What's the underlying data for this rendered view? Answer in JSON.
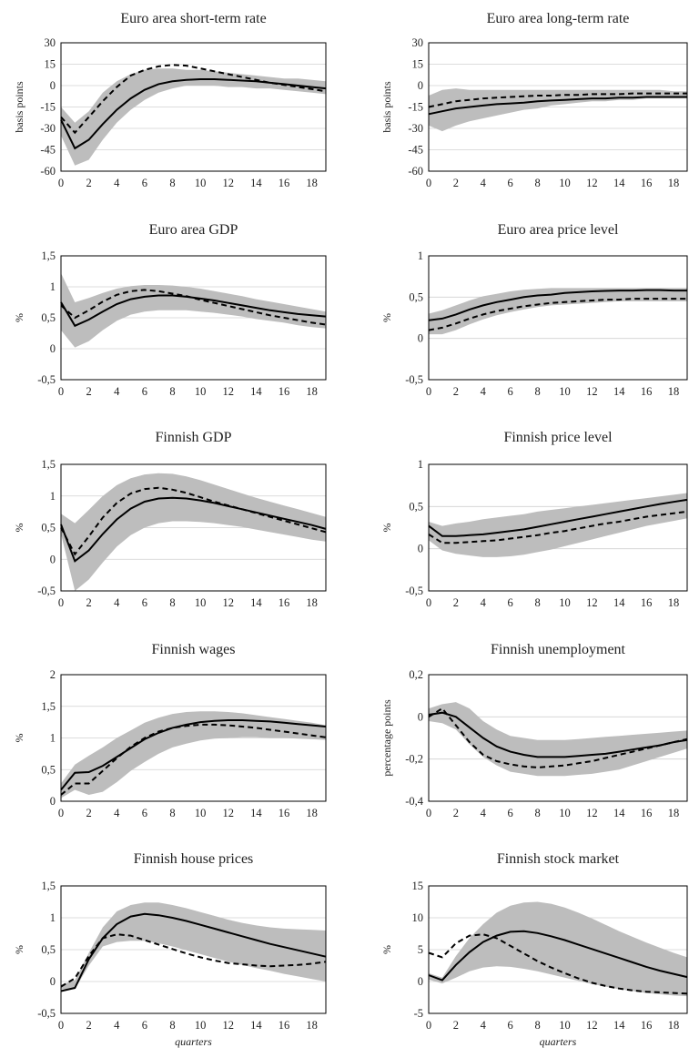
{
  "chart_data": [
    {
      "type": "line",
      "title": "Euro area short-term rate",
      "ylabel": "basis points",
      "xlabel": "",
      "ylim": [
        -60,
        30
      ],
      "yticks": [
        "30",
        "15",
        "0",
        "-15",
        "-30",
        "-45",
        "-60"
      ],
      "ytick_values": [
        30,
        15,
        0,
        -15,
        -30,
        -45,
        -60
      ],
      "xticks": [
        "0",
        "2",
        "4",
        "6",
        "8",
        "10",
        "12",
        "14",
        "16",
        "18"
      ],
      "x": [
        0,
        1,
        2,
        3,
        4,
        5,
        6,
        7,
        8,
        9,
        10,
        11,
        12,
        13,
        14,
        15,
        16,
        17,
        18,
        19
      ],
      "band_lower": [
        -35,
        -56,
        -52,
        -38,
        -26,
        -17,
        -10,
        -5,
        -2,
        0,
        0,
        0,
        -1,
        -1,
        -2,
        -2,
        -3,
        -4,
        -5,
        -6
      ],
      "band_upper": [
        -15,
        -26,
        -18,
        -5,
        3,
        8,
        11,
        12,
        12,
        11,
        11,
        10,
        9,
        8,
        7,
        6,
        5,
        5,
        4,
        3
      ],
      "solid": [
        -24,
        -44,
        -38,
        -27,
        -17,
        -9,
        -3,
        1,
        3,
        4,
        4.5,
        4.5,
        4,
        3.5,
        3,
        2,
        1,
        0,
        -1,
        -2
      ],
      "dashed": [
        -22,
        -33,
        -22,
        -11,
        -1,
        7,
        11,
        13.5,
        14.5,
        14,
        12,
        10,
        8,
        6,
        4,
        2,
        0.5,
        -1,
        -2.5,
        -4
      ]
    },
    {
      "type": "line",
      "title": "Euro area long-term rate",
      "ylabel": "basis points",
      "xlabel": "",
      "ylim": [
        -60,
        30
      ],
      "yticks": [
        "30",
        "15",
        "0",
        "-15",
        "-30",
        "-45",
        "-60"
      ],
      "ytick_values": [
        30,
        15,
        0,
        -15,
        -30,
        -45,
        -60
      ],
      "xticks": [
        "0",
        "2",
        "4",
        "6",
        "8",
        "10",
        "12",
        "14",
        "16",
        "18"
      ],
      "x": [
        0,
        1,
        2,
        3,
        4,
        5,
        6,
        7,
        8,
        9,
        10,
        11,
        12,
        13,
        14,
        15,
        16,
        17,
        18,
        19
      ],
      "band_lower": [
        -28,
        -32,
        -28,
        -25,
        -23,
        -21,
        -19,
        -17,
        -16,
        -14,
        -13,
        -12,
        -11,
        -11,
        -10,
        -10,
        -9,
        -9,
        -9,
        -9
      ],
      "band_upper": [
        -7,
        -3,
        -2,
        -3,
        -3,
        -3,
        -3,
        -3,
        -3,
        -3,
        -3,
        -3,
        -3,
        -3,
        -3,
        -3,
        -3,
        -3,
        -4,
        -4
      ],
      "solid": [
        -20,
        -18,
        -16,
        -15,
        -14,
        -13,
        -12.5,
        -12,
        -11,
        -10.5,
        -10,
        -9.5,
        -9,
        -9,
        -8.5,
        -8.5,
        -8,
        -8,
        -8,
        -8
      ],
      "dashed": [
        -15,
        -13,
        -11,
        -10,
        -9,
        -8.5,
        -8,
        -7.5,
        -7,
        -7,
        -6.5,
        -6.5,
        -6,
        -6,
        -6,
        -5.5,
        -5.5,
        -5.5,
        -5.5,
        -5.5
      ]
    },
    {
      "type": "line",
      "title": "Euro area GDP",
      "ylabel": "%",
      "xlabel": "",
      "ylim": [
        -0.5,
        1.5
      ],
      "yticks": [
        "1,5",
        "1",
        "0,5",
        "0",
        "-0,5"
      ],
      "ytick_values": [
        1.5,
        1,
        0.5,
        0,
        -0.5
      ],
      "xticks": [
        "0",
        "2",
        "4",
        "6",
        "8",
        "10",
        "12",
        "14",
        "16",
        "18"
      ],
      "x": [
        0,
        1,
        2,
        3,
        4,
        5,
        6,
        7,
        8,
        9,
        10,
        11,
        12,
        13,
        14,
        15,
        16,
        17,
        18,
        19
      ],
      "band_lower": [
        0.3,
        0.02,
        0.12,
        0.3,
        0.45,
        0.55,
        0.6,
        0.62,
        0.62,
        0.62,
        0.6,
        0.58,
        0.55,
        0.52,
        0.48,
        0.45,
        0.42,
        0.38,
        0.35,
        0.33
      ],
      "band_upper": [
        1.22,
        0.75,
        0.82,
        0.9,
        0.97,
        1.01,
        1.03,
        1.03,
        1.02,
        1.0,
        0.97,
        0.93,
        0.89,
        0.85,
        0.8,
        0.76,
        0.72,
        0.68,
        0.64,
        0.6
      ],
      "solid": [
        0.75,
        0.37,
        0.47,
        0.6,
        0.72,
        0.8,
        0.84,
        0.86,
        0.86,
        0.84,
        0.81,
        0.78,
        0.74,
        0.7,
        0.66,
        0.62,
        0.59,
        0.56,
        0.54,
        0.52
      ],
      "dashed": [
        0.7,
        0.5,
        0.62,
        0.76,
        0.87,
        0.93,
        0.95,
        0.93,
        0.89,
        0.85,
        0.79,
        0.74,
        0.69,
        0.64,
        0.59,
        0.54,
        0.5,
        0.46,
        0.42,
        0.39
      ]
    },
    {
      "type": "line",
      "title": "Euro area price level",
      "ylabel": "%",
      "xlabel": "",
      "ylim": [
        -0.5,
        1
      ],
      "yticks": [
        "1",
        "0,5",
        "0",
        "-0,5"
      ],
      "ytick_values": [
        1,
        0.5,
        0,
        -0.5
      ],
      "xticks": [
        "0",
        "2",
        "4",
        "6",
        "8",
        "10",
        "12",
        "14",
        "16",
        "18"
      ],
      "x": [
        0,
        1,
        2,
        3,
        4,
        5,
        6,
        7,
        8,
        9,
        10,
        11,
        12,
        13,
        14,
        15,
        16,
        17,
        18,
        19
      ],
      "band_lower": [
        0.05,
        0.05,
        0.1,
        0.17,
        0.23,
        0.28,
        0.32,
        0.35,
        0.38,
        0.4,
        0.41,
        0.42,
        0.43,
        0.44,
        0.45,
        0.45,
        0.45,
        0.45,
        0.45,
        0.45
      ],
      "band_upper": [
        0.3,
        0.34,
        0.4,
        0.46,
        0.51,
        0.54,
        0.57,
        0.59,
        0.6,
        0.61,
        0.61,
        0.61,
        0.61,
        0.61,
        0.61,
        0.61,
        0.61,
        0.61,
        0.61,
        0.61
      ],
      "solid": [
        0.22,
        0.24,
        0.29,
        0.35,
        0.4,
        0.44,
        0.47,
        0.5,
        0.52,
        0.53,
        0.55,
        0.56,
        0.57,
        0.575,
        0.58,
        0.58,
        0.585,
        0.585,
        0.58,
        0.58
      ],
      "dashed": [
        0.1,
        0.13,
        0.18,
        0.24,
        0.29,
        0.33,
        0.36,
        0.39,
        0.41,
        0.43,
        0.44,
        0.45,
        0.46,
        0.47,
        0.47,
        0.48,
        0.48,
        0.48,
        0.48,
        0.48
      ]
    },
    {
      "type": "line",
      "title": "Finnish GDP",
      "ylabel": "%",
      "xlabel": "",
      "ylim": [
        -0.5,
        1.5
      ],
      "yticks": [
        "1,5",
        "1",
        "0,5",
        "0",
        "-0,5"
      ],
      "ytick_values": [
        1.5,
        1,
        0.5,
        0,
        -0.5
      ],
      "xticks": [
        "0",
        "2",
        "4",
        "6",
        "8",
        "10",
        "12",
        "14",
        "16",
        "18"
      ],
      "x": [
        0,
        1,
        2,
        3,
        4,
        5,
        6,
        7,
        8,
        9,
        10,
        11,
        12,
        13,
        14,
        15,
        16,
        17,
        18,
        19
      ],
      "band_lower": [
        0.4,
        -0.5,
        -0.32,
        -0.05,
        0.2,
        0.38,
        0.5,
        0.57,
        0.6,
        0.6,
        0.59,
        0.57,
        0.54,
        0.51,
        0.47,
        0.43,
        0.39,
        0.35,
        0.31,
        0.28
      ],
      "band_upper": [
        0.72,
        0.57,
        0.78,
        1.0,
        1.17,
        1.28,
        1.34,
        1.36,
        1.35,
        1.31,
        1.25,
        1.18,
        1.11,
        1.04,
        0.97,
        0.91,
        0.85,
        0.79,
        0.73,
        0.67
      ],
      "solid": [
        0.55,
        -0.03,
        0.14,
        0.4,
        0.63,
        0.8,
        0.91,
        0.96,
        0.97,
        0.96,
        0.93,
        0.89,
        0.84,
        0.79,
        0.74,
        0.69,
        0.64,
        0.59,
        0.54,
        0.48
      ],
      "dashed": [
        0.5,
        0.08,
        0.36,
        0.66,
        0.89,
        1.04,
        1.11,
        1.13,
        1.1,
        1.05,
        0.98,
        0.91,
        0.85,
        0.79,
        0.73,
        0.67,
        0.61,
        0.55,
        0.49,
        0.43
      ]
    },
    {
      "type": "line",
      "title": "Finnish price level",
      "ylabel": "%",
      "xlabel": "",
      "ylim": [
        -0.5,
        1
      ],
      "yticks": [
        "1",
        "0,5",
        "0",
        "-0,5"
      ],
      "ytick_values": [
        1,
        0.5,
        0,
        -0.5
      ],
      "xticks": [
        "0",
        "2",
        "4",
        "6",
        "8",
        "10",
        "12",
        "14",
        "16",
        "18"
      ],
      "x": [
        0,
        1,
        2,
        3,
        4,
        5,
        6,
        7,
        8,
        9,
        10,
        11,
        12,
        13,
        14,
        15,
        16,
        17,
        18,
        19
      ],
      "band_lower": [
        0.1,
        -0.02,
        -0.06,
        -0.08,
        -0.1,
        -0.1,
        -0.09,
        -0.07,
        -0.04,
        -0.01,
        0.03,
        0.07,
        0.11,
        0.15,
        0.19,
        0.23,
        0.27,
        0.3,
        0.33,
        0.36
      ],
      "band_upper": [
        0.32,
        0.27,
        0.3,
        0.32,
        0.35,
        0.37,
        0.39,
        0.41,
        0.44,
        0.46,
        0.48,
        0.5,
        0.52,
        0.54,
        0.56,
        0.58,
        0.6,
        0.62,
        0.64,
        0.66
      ],
      "solid": [
        0.27,
        0.15,
        0.15,
        0.16,
        0.17,
        0.19,
        0.21,
        0.23,
        0.26,
        0.29,
        0.32,
        0.35,
        0.38,
        0.41,
        0.44,
        0.47,
        0.5,
        0.53,
        0.555,
        0.58
      ],
      "dashed": [
        0.17,
        0.07,
        0.07,
        0.08,
        0.09,
        0.1,
        0.12,
        0.14,
        0.16,
        0.19,
        0.21,
        0.24,
        0.27,
        0.3,
        0.32,
        0.35,
        0.38,
        0.4,
        0.42,
        0.44
      ]
    },
    {
      "type": "line",
      "title": "Finnish wages",
      "ylabel": "%",
      "xlabel": "",
      "ylim": [
        0,
        2
      ],
      "yticks": [
        "2",
        "1,5",
        "1",
        "0,5",
        "0"
      ],
      "ytick_values": [
        2,
        1.5,
        1,
        0.5,
        0
      ],
      "xticks": [
        "0",
        "2",
        "4",
        "6",
        "8",
        "10",
        "12",
        "14",
        "16",
        "18"
      ],
      "x": [
        0,
        1,
        2,
        3,
        4,
        5,
        6,
        7,
        8,
        9,
        10,
        11,
        12,
        13,
        14,
        15,
        16,
        17,
        18,
        19
      ],
      "band_lower": [
        0.05,
        0.18,
        0.1,
        0.15,
        0.3,
        0.48,
        0.62,
        0.75,
        0.85,
        0.91,
        0.96,
        0.99,
        1.0,
        1.01,
        1.01,
        1.0,
        1.0,
        0.99,
        0.98,
        0.97
      ],
      "band_upper": [
        0.28,
        0.58,
        0.72,
        0.85,
        1.0,
        1.12,
        1.24,
        1.32,
        1.38,
        1.41,
        1.42,
        1.42,
        1.41,
        1.39,
        1.36,
        1.33,
        1.3,
        1.27,
        1.24,
        1.2
      ],
      "solid": [
        0.18,
        0.45,
        0.46,
        0.56,
        0.7,
        0.84,
        0.98,
        1.08,
        1.16,
        1.21,
        1.25,
        1.27,
        1.28,
        1.28,
        1.27,
        1.26,
        1.24,
        1.22,
        1.2,
        1.18
      ],
      "dashed": [
        0.1,
        0.28,
        0.28,
        0.48,
        0.68,
        0.86,
        1.0,
        1.1,
        1.16,
        1.19,
        1.21,
        1.21,
        1.2,
        1.18,
        1.16,
        1.13,
        1.1,
        1.07,
        1.04,
        1.01
      ]
    },
    {
      "type": "line",
      "title": "Finnish unemployment",
      "ylabel": "percentage points",
      "xlabel": "",
      "ylim": [
        -0.4,
        0.2
      ],
      "yticks": [
        "0,2",
        "0",
        "-0,2",
        "-0,4"
      ],
      "ytick_values": [
        0.2,
        0,
        -0.2,
        -0.4
      ],
      "xticks": [
        "0",
        "2",
        "4",
        "6",
        "8",
        "10",
        "12",
        "14",
        "16",
        "18"
      ],
      "x": [
        0,
        1,
        2,
        3,
        4,
        5,
        6,
        7,
        8,
        9,
        10,
        11,
        12,
        13,
        14,
        15,
        16,
        17,
        18,
        19
      ],
      "band_lower": [
        -0.02,
        -0.03,
        -0.06,
        -0.13,
        -0.19,
        -0.23,
        -0.26,
        -0.27,
        -0.28,
        -0.28,
        -0.28,
        -0.275,
        -0.27,
        -0.26,
        -0.25,
        -0.23,
        -0.21,
        -0.19,
        -0.17,
        -0.15
      ],
      "band_upper": [
        0.04,
        0.06,
        0.07,
        0.04,
        -0.02,
        -0.06,
        -0.09,
        -0.1,
        -0.11,
        -0.11,
        -0.11,
        -0.105,
        -0.1,
        -0.095,
        -0.09,
        -0.085,
        -0.08,
        -0.075,
        -0.07,
        -0.065
      ],
      "solid": [
        0.01,
        0.02,
        0.0,
        -0.05,
        -0.1,
        -0.14,
        -0.165,
        -0.18,
        -0.19,
        -0.19,
        -0.19,
        -0.185,
        -0.18,
        -0.175,
        -0.165,
        -0.155,
        -0.145,
        -0.135,
        -0.12,
        -0.11
      ],
      "dashed": [
        0.0,
        0.04,
        -0.04,
        -0.12,
        -0.18,
        -0.21,
        -0.225,
        -0.235,
        -0.24,
        -0.235,
        -0.23,
        -0.22,
        -0.21,
        -0.195,
        -0.18,
        -0.165,
        -0.15,
        -0.135,
        -0.12,
        -0.105
      ]
    },
    {
      "type": "line",
      "title": "Finnish house prices",
      "ylabel": "%",
      "xlabel": "quarters",
      "ylim": [
        -0.5,
        1.5
      ],
      "yticks": [
        "1,5",
        "1",
        "0,5",
        "0",
        "-0,5"
      ],
      "ytick_values": [
        1.5,
        1,
        0.5,
        0,
        -0.5
      ],
      "xticks": [
        "0",
        "2",
        "4",
        "6",
        "8",
        "10",
        "12",
        "14",
        "16",
        "18"
      ],
      "x": [
        0,
        1,
        2,
        3,
        4,
        5,
        6,
        7,
        8,
        9,
        10,
        11,
        12,
        13,
        14,
        15,
        16,
        17,
        18,
        19
      ],
      "band_lower": [
        -0.12,
        -0.12,
        0.25,
        0.55,
        0.62,
        0.64,
        0.64,
        0.6,
        0.55,
        0.49,
        0.43,
        0.37,
        0.31,
        0.26,
        0.21,
        0.17,
        0.12,
        0.08,
        0.04,
        0.0
      ],
      "band_upper": [
        -0.05,
        0.02,
        0.45,
        0.85,
        1.1,
        1.2,
        1.24,
        1.24,
        1.2,
        1.15,
        1.09,
        1.03,
        0.97,
        0.92,
        0.88,
        0.85,
        0.83,
        0.82,
        0.81,
        0.8
      ],
      "solid": [
        -0.15,
        -0.1,
        0.35,
        0.68,
        0.9,
        1.02,
        1.06,
        1.04,
        1.0,
        0.95,
        0.89,
        0.83,
        0.77,
        0.71,
        0.65,
        0.59,
        0.54,
        0.49,
        0.44,
        0.39
      ],
      "dashed": [
        -0.08,
        0.05,
        0.4,
        0.68,
        0.74,
        0.72,
        0.65,
        0.58,
        0.51,
        0.44,
        0.38,
        0.33,
        0.29,
        0.27,
        0.25,
        0.24,
        0.25,
        0.26,
        0.28,
        0.31
      ]
    },
    {
      "type": "line",
      "title": "Finnish stock market",
      "ylabel": "%",
      "xlabel": "quarters",
      "ylim": [
        -5,
        15
      ],
      "yticks": [
        "15",
        "10",
        "5",
        "0",
        "-5"
      ],
      "ytick_values": [
        15,
        10,
        5,
        0,
        -5
      ],
      "xticks": [
        "0",
        "2",
        "4",
        "6",
        "8",
        "10",
        "12",
        "14",
        "16",
        "18"
      ],
      "x": [
        0,
        1,
        2,
        3,
        4,
        5,
        6,
        7,
        8,
        9,
        10,
        11,
        12,
        13,
        14,
        15,
        16,
        17,
        18,
        19
      ],
      "band_lower": [
        0.3,
        -0.3,
        0.6,
        1.6,
        2.2,
        2.4,
        2.3,
        2.0,
        1.6,
        1.1,
        0.6,
        0.1,
        -0.4,
        -0.8,
        -1.2,
        -1.5,
        -1.8,
        -2.0,
        -2.2,
        -2.3
      ],
      "band_upper": [
        1.3,
        0.6,
        4.0,
        6.8,
        9.0,
        10.8,
        11.9,
        12.4,
        12.5,
        12.2,
        11.6,
        10.8,
        9.9,
        8.9,
        7.9,
        7.0,
        6.1,
        5.3,
        4.5,
        3.8
      ],
      "solid": [
        1.0,
        0.2,
        2.6,
        4.6,
        6.2,
        7.2,
        7.8,
        7.9,
        7.6,
        7.1,
        6.5,
        5.8,
        5.1,
        4.4,
        3.7,
        3.0,
        2.3,
        1.7,
        1.2,
        0.7
      ],
      "dashed": [
        4.5,
        3.8,
        6.0,
        7.2,
        7.4,
        6.8,
        5.6,
        4.4,
        3.2,
        2.2,
        1.3,
        0.5,
        -0.2,
        -0.7,
        -1.1,
        -1.4,
        -1.6,
        -1.7,
        -1.8,
        -1.9
      ]
    }
  ]
}
